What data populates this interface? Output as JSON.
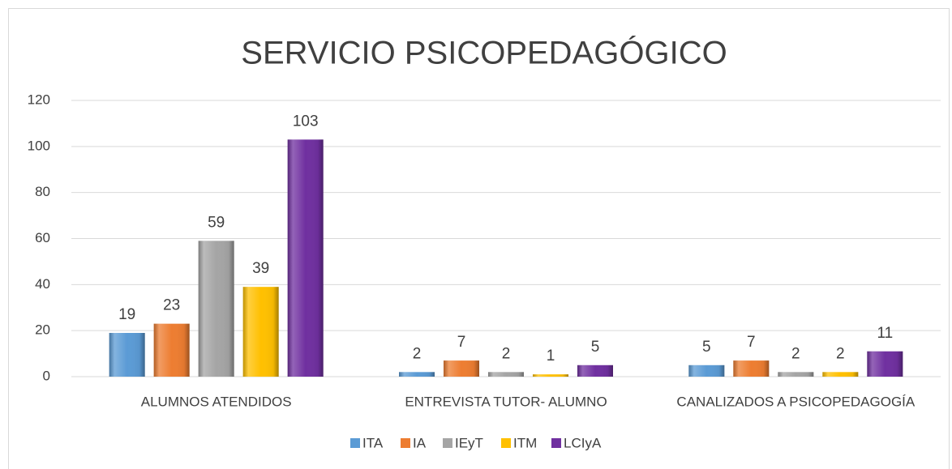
{
  "chart_data": {
    "type": "bar",
    "title": "SERVICIO PSICOPEDAGÓGICO",
    "categories": [
      "ALUMNOS ATENDIDOS",
      "ENTREVISTA TUTOR- ALUMNO",
      "CANALIZADOS A PSICOPEDAGOGÍA"
    ],
    "series": [
      {
        "name": "ITA",
        "color": "#5b9bd5",
        "values": [
          19,
          2,
          5
        ]
      },
      {
        "name": "IA",
        "color": "#ed7d31",
        "values": [
          23,
          7,
          7
        ]
      },
      {
        "name": "IEyT",
        "color": "#a5a5a5",
        "values": [
          59,
          2,
          2
        ]
      },
      {
        "name": "ITM",
        "color": "#ffc000",
        "values": [
          39,
          1,
          2
        ]
      },
      {
        "name": "LCIyA",
        "color": "#7030a0",
        "values": [
          103,
          5,
          11
        ]
      }
    ],
    "ylim": [
      0,
      120
    ],
    "yticks": [
      0,
      20,
      40,
      60,
      80,
      100,
      120
    ],
    "grid": true,
    "legend": "bottom"
  }
}
